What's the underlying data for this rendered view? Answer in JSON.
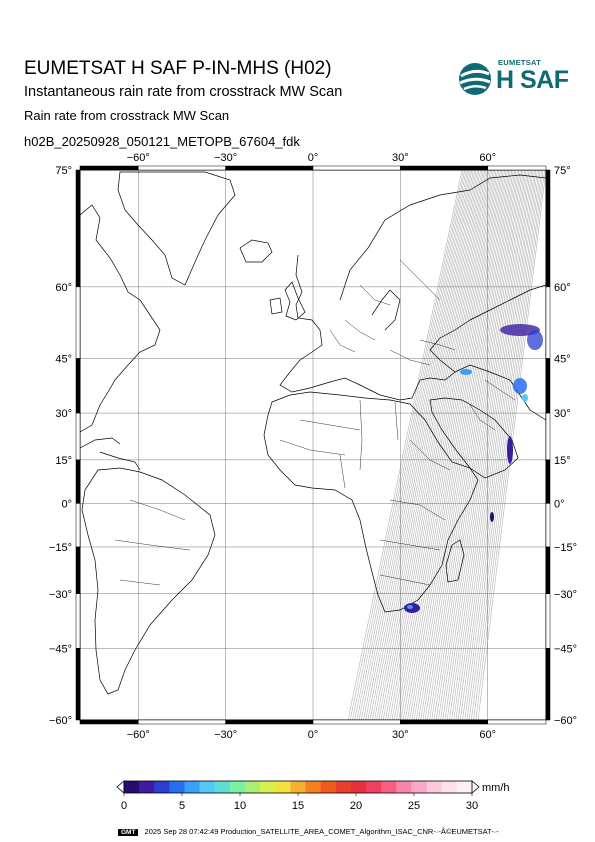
{
  "header": {
    "title": "EUMETSAT H SAF P-IN-MHS (H02)",
    "subtitle": "Instantaneous rain rate from crosstrack MW Scan",
    "product": "Rain rate from crosstrack MW Scan",
    "filename": "h02B_20250928_050121_METOPB_67604_fdk"
  },
  "logo": {
    "org": "EUMETSAT",
    "name": "H SAF",
    "color": "#0f6b73"
  },
  "map": {
    "lon_range": [
      -80,
      80
    ],
    "lat_range": [
      -60,
      75
    ],
    "lon_ticks": [
      "−60°",
      "−30°",
      "0°",
      "30°",
      "60°"
    ],
    "lon_tick_values": [
      -60,
      -30,
      0,
      30,
      60
    ],
    "lat_ticks": [
      "75°",
      "60°",
      "45°",
      "30°",
      "15°",
      "0°",
      "−15°",
      "−30°",
      "−45°",
      "−60°"
    ],
    "lat_tick_values": [
      75,
      60,
      45,
      30,
      15,
      0,
      -15,
      -30,
      -45,
      -60
    ],
    "swath_color": "#b4b4b4",
    "land_color": "#ffffff",
    "coast_color": "#000000"
  },
  "colorbar": {
    "labels": [
      "0",
      "5",
      "10",
      "15",
      "20",
      "25",
      "30"
    ],
    "unit": "mm/h",
    "colors": [
      "#2a0a6e",
      "#3b1ea0",
      "#2a3ed0",
      "#2a6ef0",
      "#3aa0f8",
      "#55c8f5",
      "#5ee0d0",
      "#7af0a0",
      "#a8f070",
      "#d8f050",
      "#f5e040",
      "#f5b030",
      "#f58020",
      "#f05a1e",
      "#e8402a",
      "#e8303a",
      "#f04060",
      "#f56080",
      "#f588a8",
      "#f8a8c8",
      "#fcc8dc",
      "#fde0ea",
      "#fff0f5"
    ]
  },
  "footer": {
    "tag": "GMT",
    "timestamp": "2025 Sep 28 07:42:49",
    "credit": "Production_SATELLITE_AREA_COMET_Algorithm_ISAC_CNR-·-Â©EUMETSAT-·-"
  }
}
